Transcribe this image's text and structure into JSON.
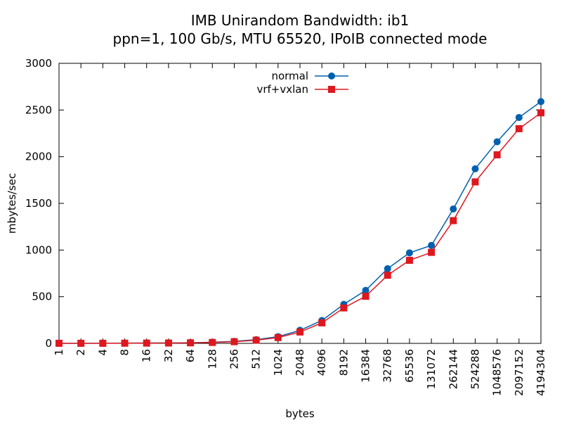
{
  "chart_data": {
    "type": "line",
    "title": "IMB Unirandom Bandwidth: ib1",
    "subtitle": "ppn=1, 100 Gb/s, MTU 65520, IPoIB connected mode",
    "xlabel": "bytes",
    "ylabel": "mbytes/sec",
    "categories": [
      "1",
      "2",
      "4",
      "8",
      "16",
      "32",
      "64",
      "128",
      "256",
      "512",
      "1024",
      "2048",
      "4096",
      "8192",
      "16384",
      "32768",
      "65536",
      "131072",
      "262144",
      "524288",
      "1048576",
      "2097152",
      "4194304"
    ],
    "ylim": [
      0,
      3000
    ],
    "yticks": [
      0,
      500,
      1000,
      1500,
      2000,
      2500,
      3000
    ],
    "legend_position": "top-center",
    "grid": false,
    "series": [
      {
        "name": "normal",
        "color": "#0060ad",
        "marker": "circle",
        "values": [
          1,
          1,
          2,
          3,
          4,
          5,
          7,
          12,
          22,
          40,
          72,
          140,
          245,
          418,
          568,
          800,
          970,
          1050,
          1440,
          1870,
          2160,
          2420,
          2590
        ]
      },
      {
        "name": "vrf+vxlan",
        "color": "#dd181f",
        "marker": "square",
        "values": [
          1,
          1,
          1,
          2,
          3,
          4,
          6,
          10,
          18,
          34,
          62,
          122,
          220,
          380,
          505,
          730,
          890,
          975,
          1315,
          1730,
          2020,
          2300,
          2470
        ]
      }
    ]
  }
}
